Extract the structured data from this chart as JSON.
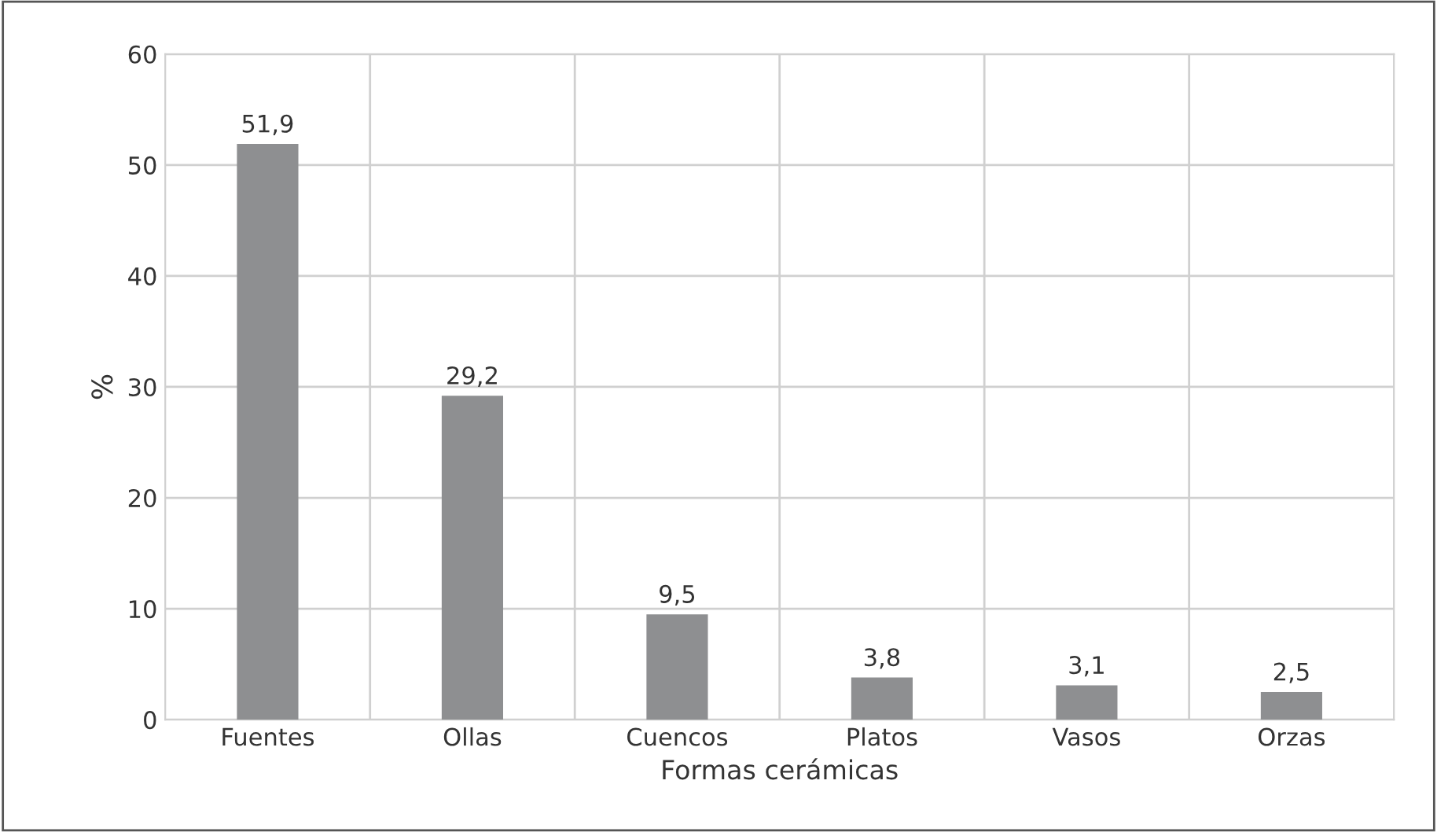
{
  "chart_data": {
    "type": "bar",
    "xlabel": "Formas cerámicas",
    "ylabel": "%",
    "categories": [
      "Fuentes",
      "Ollas",
      "Cuencos",
      "Platos",
      "Vasos",
      "Orzas"
    ],
    "values": [
      51.9,
      29.2,
      9.5,
      3.8,
      3.1,
      2.5
    ],
    "value_labels": [
      "51,9",
      "29,2",
      "9,5",
      "3,8",
      "3,1",
      "2,5"
    ],
    "color": "#8e8f91",
    "ylim": [
      0,
      60
    ],
    "yticks": [
      0,
      10,
      20,
      30,
      40,
      50,
      60
    ],
    "grid": true
  }
}
